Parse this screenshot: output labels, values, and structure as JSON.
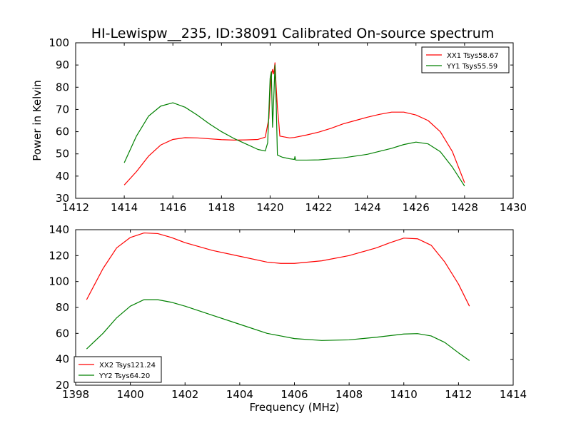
{
  "figure": {
    "title": "HI-Lewispw__235, ID:38091 Calibrated On-source spectrum"
  },
  "chart_data": [
    {
      "type": "line",
      "ylabel": "Power in Kelvin",
      "xlabel": "",
      "xlim": [
        1412,
        1430
      ],
      "ylim": [
        30,
        100
      ],
      "xticks": [
        1412,
        1414,
        1416,
        1418,
        1420,
        1422,
        1424,
        1426,
        1428,
        1430
      ],
      "yticks": [
        30,
        40,
        50,
        60,
        70,
        80,
        90,
        100
      ],
      "legend_position": "upper right",
      "series": [
        {
          "name": "XX1 Tsys58.67",
          "color": "#ff0000",
          "points": [
            [
              1414.0,
              36
            ],
            [
              1414.5,
              42
            ],
            [
              1415.0,
              49
            ],
            [
              1415.5,
              54
            ],
            [
              1416.0,
              56.5
            ],
            [
              1416.5,
              57.3
            ],
            [
              1417.0,
              57.2
            ],
            [
              1417.5,
              56.8
            ],
            [
              1418.0,
              56.4
            ],
            [
              1418.5,
              56.2
            ],
            [
              1419.0,
              56.3
            ],
            [
              1419.5,
              56.5
            ],
            [
              1419.8,
              57.5
            ],
            [
              1419.95,
              66
            ],
            [
              1420.0,
              78
            ],
            [
              1420.05,
              85
            ],
            [
              1420.1,
              88
            ],
            [
              1420.15,
              86
            ],
            [
              1420.2,
              91
            ],
            [
              1420.25,
              80
            ],
            [
              1420.3,
              71
            ],
            [
              1420.35,
              65
            ],
            [
              1420.4,
              58
            ],
            [
              1420.8,
              57.2
            ],
            [
              1421.0,
              57.4
            ],
            [
              1421.5,
              58.5
            ],
            [
              1422.0,
              59.8
            ],
            [
              1422.5,
              61.5
            ],
            [
              1423.0,
              63.5
            ],
            [
              1423.5,
              65
            ],
            [
              1424.0,
              66.5
            ],
            [
              1424.5,
              67.8
            ],
            [
              1425.0,
              68.8
            ],
            [
              1425.5,
              68.8
            ],
            [
              1426.0,
              67.5
            ],
            [
              1426.5,
              65
            ],
            [
              1427.0,
              60
            ],
            [
              1427.5,
              51
            ],
            [
              1428.0,
              37
            ]
          ]
        },
        {
          "name": "YY1 Tsys55.59",
          "color": "#008000",
          "points": [
            [
              1414.0,
              46
            ],
            [
              1414.5,
              58
            ],
            [
              1415.0,
              67
            ],
            [
              1415.5,
              71.5
            ],
            [
              1416.0,
              73
            ],
            [
              1416.5,
              71
            ],
            [
              1417.0,
              67.5
            ],
            [
              1417.5,
              63.5
            ],
            [
              1418.0,
              60
            ],
            [
              1418.5,
              57
            ],
            [
              1419.0,
              54.5
            ],
            [
              1419.5,
              52
            ],
            [
              1419.8,
              51.3
            ],
            [
              1419.9,
              55
            ],
            [
              1420.0,
              84
            ],
            [
              1420.05,
              87
            ],
            [
              1420.1,
              62
            ],
            [
              1420.15,
              75
            ],
            [
              1420.2,
              90
            ],
            [
              1420.25,
              73
            ],
            [
              1420.3,
              49.5
            ],
            [
              1420.5,
              48.5
            ],
            [
              1420.8,
              47.8
            ],
            [
              1421.0,
              47.5
            ],
            [
              1421.02,
              48.8
            ],
            [
              1421.05,
              47.2
            ],
            [
              1421.5,
              47.2
            ],
            [
              1422.0,
              47.3
            ],
            [
              1423.0,
              48.2
            ],
            [
              1424.0,
              49.8
            ],
            [
              1425.0,
              52.5
            ],
            [
              1425.5,
              54.2
            ],
            [
              1426.0,
              55.3
            ],
            [
              1426.5,
              54.5
            ],
            [
              1427.0,
              51
            ],
            [
              1427.5,
              44
            ],
            [
              1428.0,
              35.5
            ]
          ]
        }
      ]
    },
    {
      "type": "line",
      "ylabel": "",
      "xlabel": "Frequency (MHz)",
      "xlim": [
        1398,
        1414
      ],
      "ylim": [
        20,
        140
      ],
      "xticks": [
        1398,
        1400,
        1402,
        1404,
        1406,
        1408,
        1410,
        1412,
        1414
      ],
      "yticks": [
        20,
        40,
        60,
        80,
        100,
        120,
        140
      ],
      "legend_position": "lower left",
      "series": [
        {
          "name": "XX2 Tsys121.24",
          "color": "#ff0000",
          "points": [
            [
              1398.4,
              86
            ],
            [
              1399.0,
              110
            ],
            [
              1399.5,
              126
            ],
            [
              1400.0,
              134
            ],
            [
              1400.5,
              137.5
            ],
            [
              1401.0,
              137
            ],
            [
              1401.5,
              134
            ],
            [
              1402.0,
              130
            ],
            [
              1403.0,
              124
            ],
            [
              1404.0,
              119.5
            ],
            [
              1405.0,
              115
            ],
            [
              1405.5,
              114
            ],
            [
              1406.0,
              114
            ],
            [
              1407.0,
              116
            ],
            [
              1408.0,
              120
            ],
            [
              1409.0,
              126
            ],
            [
              1409.5,
              130
            ],
            [
              1410.0,
              133.5
            ],
            [
              1410.5,
              133
            ],
            [
              1411.0,
              128
            ],
            [
              1411.5,
              115
            ],
            [
              1412.0,
              98
            ],
            [
              1412.4,
              81
            ]
          ]
        },
        {
          "name": "YY2 Tsys64.20",
          "color": "#008000",
          "points": [
            [
              1398.4,
              48
            ],
            [
              1399.0,
              60
            ],
            [
              1399.5,
              72
            ],
            [
              1400.0,
              81
            ],
            [
              1400.5,
              86
            ],
            [
              1401.0,
              86
            ],
            [
              1401.5,
              84
            ],
            [
              1402.0,
              81
            ],
            [
              1403.0,
              74
            ],
            [
              1404.0,
              67
            ],
            [
              1405.0,
              60
            ],
            [
              1405.5,
              58
            ],
            [
              1406.0,
              56
            ],
            [
              1407.0,
              54.5
            ],
            [
              1408.0,
              55
            ],
            [
              1409.0,
              57
            ],
            [
              1410.0,
              59.5
            ],
            [
              1410.5,
              59.8
            ],
            [
              1411.0,
              58
            ],
            [
              1411.5,
              53
            ],
            [
              1412.0,
              45
            ],
            [
              1412.4,
              39
            ]
          ]
        }
      ]
    }
  ]
}
